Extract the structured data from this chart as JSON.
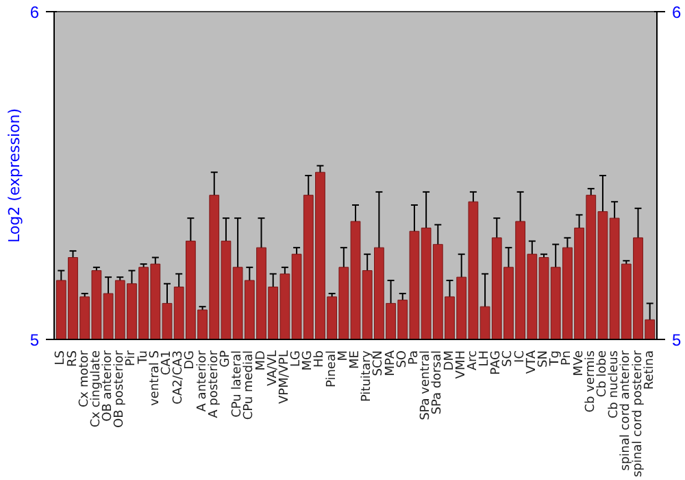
{
  "chart_data": {
    "type": "bar",
    "ylabel": "Log2 (expression)",
    "categories": [
      "LS",
      "RS",
      "Cx motor",
      "Cx cingulate",
      "OB anterior",
      "OB posterior",
      "Pir",
      "Tu",
      "ventral S",
      "CA1",
      "CA2/CA3",
      "DG",
      "A anterior",
      "A posterior",
      "GP",
      "CPu lateral",
      "CPu medial",
      "MD",
      "VA/VL",
      "VPM/VPL",
      "LG",
      "MG",
      "Hb",
      "Pineal",
      "M",
      "ME",
      "Pituitary",
      "SCN",
      "MPA",
      "SO",
      "Pa",
      "SPa ventral",
      "SPa dorsal",
      "DM",
      "VMH",
      "Arc",
      "LH",
      "PAG",
      "SC",
      "IC",
      "VTA",
      "SN",
      "Tg",
      "Pn",
      "MVe",
      "Cb vermis",
      "Cb lobe",
      "Cb nucleus",
      "spinal cord anterior",
      "spinal cord posterior",
      "Retina"
    ],
    "values": [
      5.18,
      5.25,
      5.13,
      5.21,
      5.14,
      5.18,
      5.17,
      5.22,
      5.23,
      5.11,
      5.16,
      5.3,
      5.09,
      5.44,
      5.3,
      5.22,
      5.18,
      5.28,
      5.16,
      5.2,
      5.26,
      5.44,
      5.51,
      5.13,
      5.22,
      5.36,
      5.21,
      5.28,
      5.11,
      5.12,
      5.33,
      5.34,
      5.29,
      5.13,
      5.19,
      5.42,
      5.1,
      5.31,
      5.22,
      5.36,
      5.26,
      5.25,
      5.22,
      5.28,
      5.34,
      5.44,
      5.39,
      5.37,
      5.23,
      5.31,
      5.06
    ],
    "errors": [
      0.03,
      0.02,
      0.01,
      0.01,
      0.05,
      0.01,
      0.04,
      0.01,
      0.02,
      0.06,
      0.04,
      0.07,
      0.01,
      0.07,
      0.07,
      0.15,
      0.04,
      0.09,
      0.04,
      0.02,
      0.02,
      0.06,
      0.02,
      0.01,
      0.06,
      0.05,
      0.05,
      0.17,
      0.07,
      0.02,
      0.08,
      0.11,
      0.06,
      0.05,
      0.07,
      0.03,
      0.1,
      0.06,
      0.06,
      0.09,
      0.04,
      0.01,
      0.07,
      0.03,
      0.04,
      0.02,
      0.11,
      0.05,
      0.01,
      0.09,
      0.05
    ],
    "color": "#b22a2a",
    "ylim": [
      5,
      6
    ],
    "yticks": [
      5,
      6
    ],
    "y2lim": [
      5,
      6
    ],
    "y2ticks": [
      5,
      6
    ],
    "grid": false
  }
}
